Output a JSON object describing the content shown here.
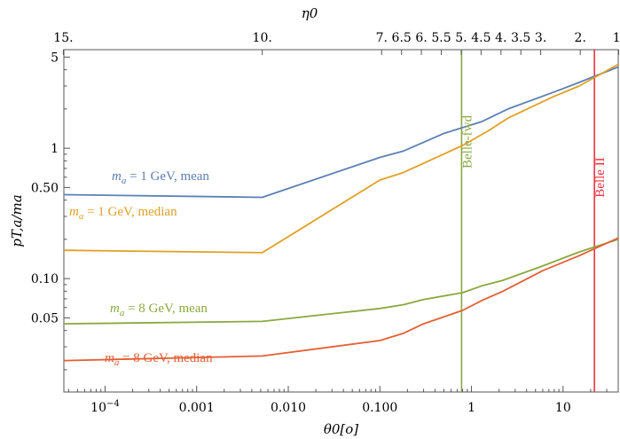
{
  "chart_data": {
    "type": "line",
    "title": "",
    "xlabel": "θ0[o]",
    "ylabel": "pT,a/ma",
    "top_axis_label": "η0",
    "x_scale": "log",
    "y_scale": "log",
    "xlim": [
      3.55e-05,
      40
    ],
    "ylim": [
      0.0135,
      5.7
    ],
    "grid": false,
    "x_ticks": [
      {
        "value": 0.0001,
        "label": "10−4"
      },
      {
        "value": 0.001,
        "label": "0.001"
      },
      {
        "value": 0.01,
        "label": "0.010"
      },
      {
        "value": 0.1,
        "label": "0.100"
      },
      {
        "value": 1,
        "label": "1"
      },
      {
        "value": 10,
        "label": "10"
      }
    ],
    "y_ticks": [
      {
        "value": 0.05,
        "label": "0.05"
      },
      {
        "value": 0.1,
        "label": "0.10"
      },
      {
        "value": 0.5,
        "label": "0.50"
      },
      {
        "value": 1,
        "label": "1"
      },
      {
        "value": 5,
        "label": "5"
      }
    ],
    "top_ticks": [
      {
        "eta": 15,
        "label": "15."
      },
      {
        "eta": 10,
        "label": "10."
      },
      {
        "eta": 7,
        "label": "7."
      },
      {
        "eta": 6.5,
        "label": "6.5"
      },
      {
        "eta": 6,
        "label": "6."
      },
      {
        "eta": 5.5,
        "label": "5.5"
      },
      {
        "eta": 5,
        "label": "5."
      },
      {
        "eta": 4.5,
        "label": "4.5"
      },
      {
        "eta": 4,
        "label": "4."
      },
      {
        "eta": 3.5,
        "label": "3.5"
      },
      {
        "eta": 3,
        "label": "3."
      },
      {
        "eta": 2,
        "label": "2."
      },
      {
        "eta": 1,
        "label": "1."
      }
    ],
    "vlines": [
      {
        "name": "Belle-fwd",
        "x": 0.78,
        "color": "#8AA83E"
      },
      {
        "name": "Belle II",
        "x": 22,
        "color": "#EF3340"
      }
    ],
    "series": [
      {
        "name": "ma = 1 GeV, mean",
        "color": "#5B80B4",
        "x": [
          3.55e-05,
          0.0052,
          0.1,
          0.18,
          0.5,
          1.3,
          2.5,
          8,
          15,
          40
        ],
        "y": [
          0.44,
          0.42,
          0.85,
          0.95,
          1.3,
          1.6,
          2.0,
          2.7,
          3.2,
          4.2
        ]
      },
      {
        "name": "ma = 1 GeV, median",
        "color": "#E0A023",
        "x": [
          3.55e-05,
          0.0052,
          0.1,
          0.18,
          0.8,
          1.5,
          2.5,
          8,
          15,
          40
        ],
        "y": [
          0.165,
          0.158,
          0.57,
          0.65,
          1.05,
          1.35,
          1.7,
          2.5,
          3.0,
          4.4
        ]
      },
      {
        "name": "ma = 8 GeV, mean",
        "color": "#8AA83E",
        "x": [
          3.55e-05,
          0.0052,
          0.1,
          0.18,
          0.3,
          0.8,
          1.3,
          2.2,
          6,
          15,
          40
        ],
        "y": [
          0.045,
          0.047,
          0.059,
          0.063,
          0.069,
          0.078,
          0.088,
          0.097,
          0.125,
          0.16,
          0.2
        ]
      },
      {
        "name": "ma = 8 GeV, median",
        "color": "#E35F35",
        "x": [
          3.55e-05,
          0.0052,
          0.1,
          0.18,
          0.3,
          0.8,
          1.3,
          2.2,
          6,
          15,
          40
        ],
        "y": [
          0.0235,
          0.0255,
          0.0335,
          0.038,
          0.045,
          0.057,
          0.068,
          0.08,
          0.115,
          0.15,
          0.205
        ]
      }
    ]
  }
}
